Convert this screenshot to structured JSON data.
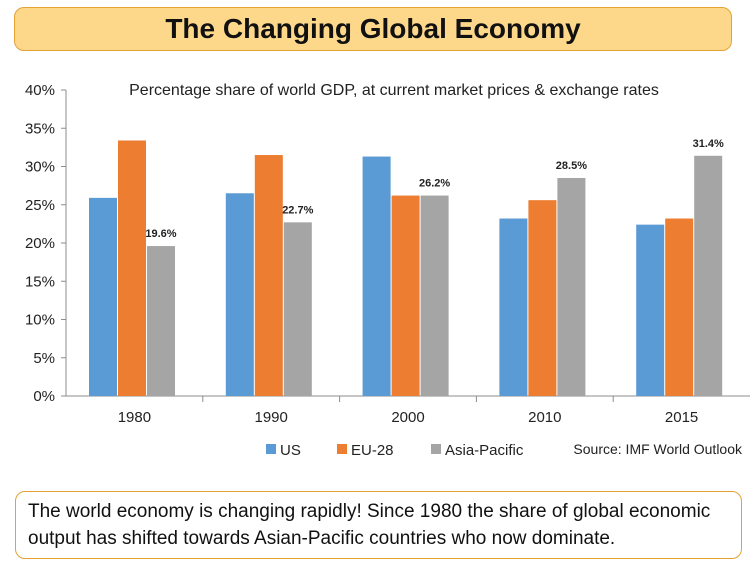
{
  "header": {
    "title": "The Changing Global Economy"
  },
  "footer": {
    "text": "The world economy is changing rapidly! Since 1980 the share of global economic output has shifted towards Asian-Pacific countries who now dominate."
  },
  "chart_data": {
    "type": "bar",
    "title": "Percentage share of world GDP, at current market prices & exchange rates",
    "source": "Source: IMF World Outlook",
    "categories": [
      "1980",
      "1990",
      "2000",
      "2010",
      "2015"
    ],
    "series": [
      {
        "name": "US",
        "color": "#5b9bd5",
        "values": [
          25.9,
          26.5,
          31.3,
          23.2,
          22.4
        ]
      },
      {
        "name": "EU-28",
        "color": "#ed7d31",
        "values": [
          33.4,
          31.5,
          26.2,
          25.6,
          23.2
        ]
      },
      {
        "name": "Asia-Pacific",
        "color": "#a5a5a5",
        "values": [
          19.6,
          22.7,
          26.2,
          28.5,
          31.4
        ],
        "labels": [
          "19.6%",
          "22.7%",
          "26.2%",
          "28.5%",
          "31.4%"
        ]
      }
    ],
    "ylim": [
      0,
      40
    ],
    "yticks": [
      "0%",
      "5%",
      "10%",
      "15%",
      "20%",
      "25%",
      "30%",
      "35%",
      "40%"
    ],
    "legend_position": "bottom",
    "grid": false
  }
}
